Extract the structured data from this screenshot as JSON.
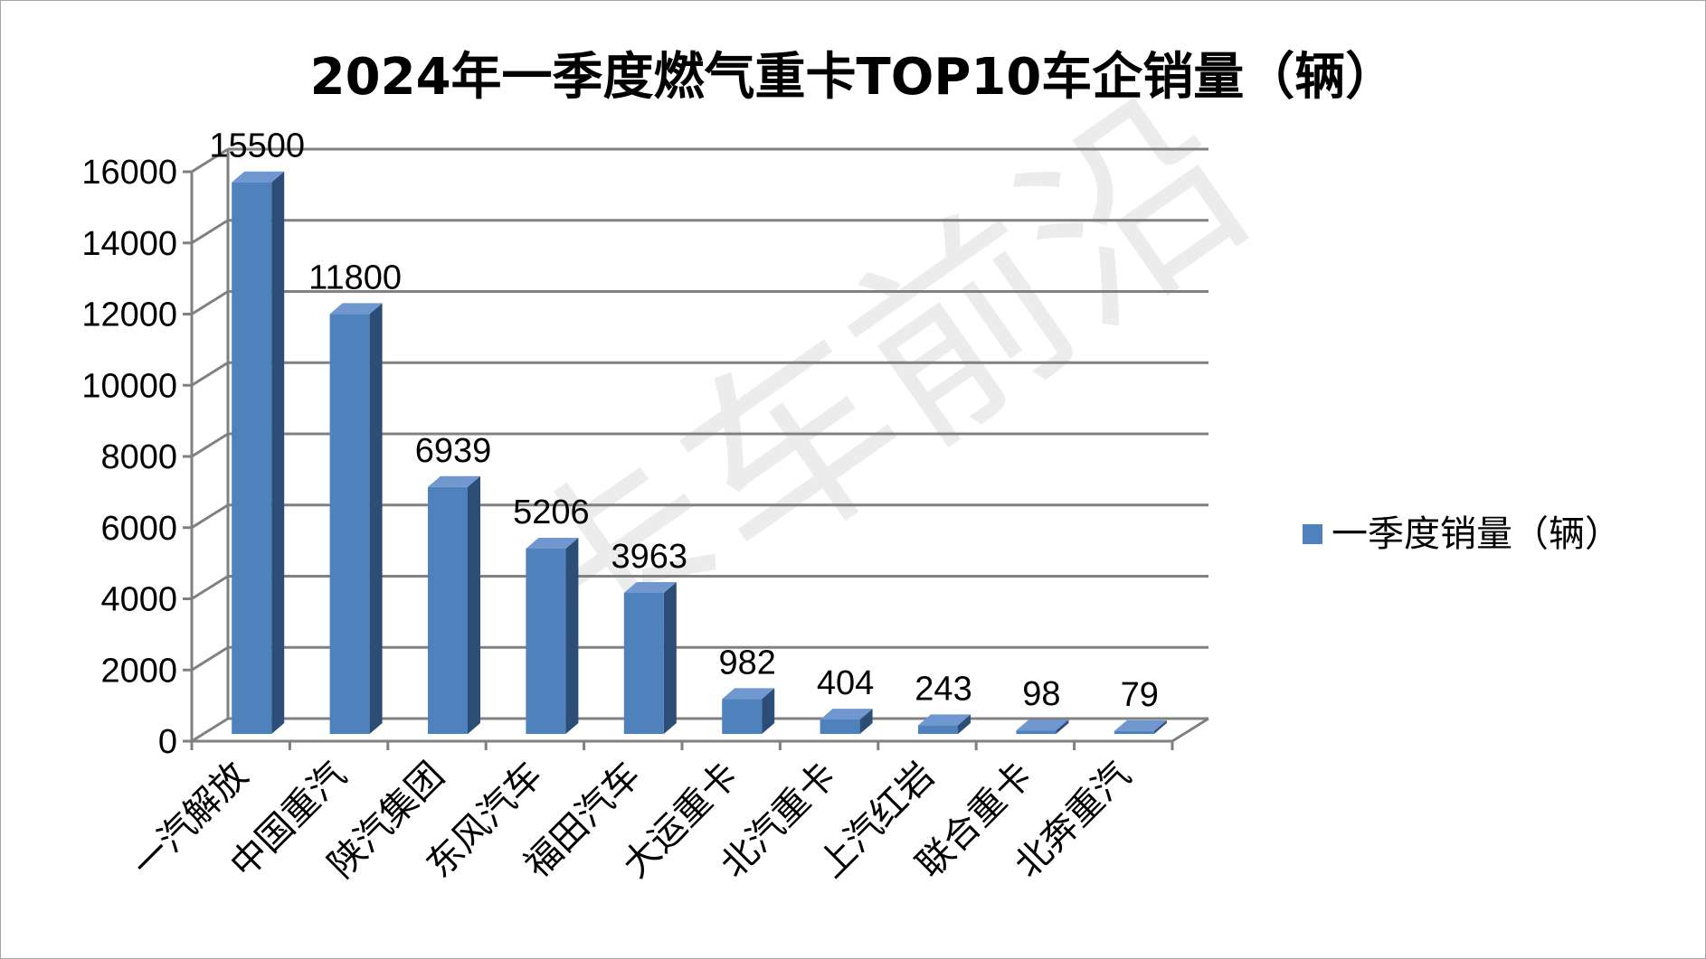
{
  "chart_data": {
    "type": "bar",
    "title": "2024年一季度燃气重卡TOP10车企销量（辆）",
    "categories": [
      "一汽解放",
      "中国重汽",
      "陕汽集团",
      "东风汽车",
      "福田汽车",
      "大运重卡",
      "北汽重卡",
      "上汽红岩",
      "联合重卡",
      "北奔重汽"
    ],
    "series": [
      {
        "name": "一季度销量（辆）",
        "values": [
          15500,
          11800,
          6939,
          5206,
          3963,
          982,
          404,
          243,
          98,
          79
        ],
        "color": "#4f81bd"
      }
    ],
    "ylim": [
      0,
      16000
    ],
    "yticks": [
      0,
      2000,
      4000,
      6000,
      8000,
      10000,
      12000,
      14000,
      16000
    ],
    "grid": true,
    "legend": "right",
    "three_d": true
  },
  "watermark": "卡车前沿"
}
